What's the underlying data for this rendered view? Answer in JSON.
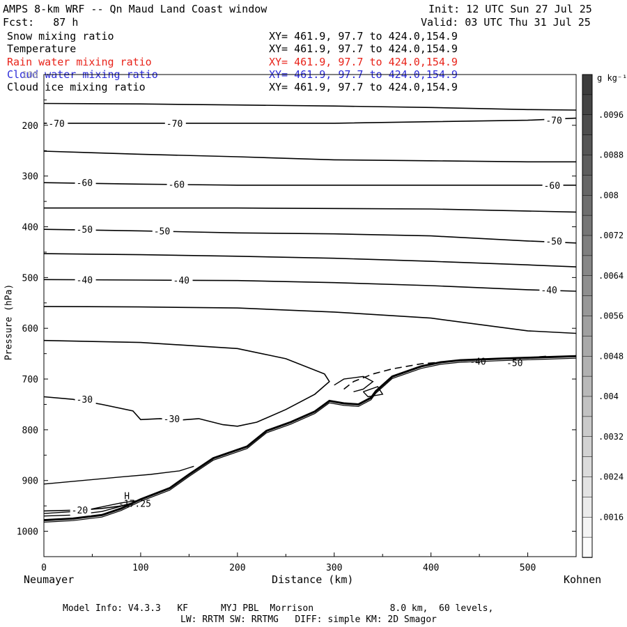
{
  "header": {
    "title": "AMPS 8-km WRF -- Qn Maud Land Coast window",
    "init": "Init: 12 UTC Sun 27 Jul 25",
    "fcst": "Fcst:   87 h",
    "valid": "Valid: 03 UTC Thu 31 Jul 25"
  },
  "fields": [
    {
      "name": "Snow mixing ratio",
      "xy": "XY= 461.9, 97.7 to 424.0,154.9",
      "color": "#000000"
    },
    {
      "name": "Temperature",
      "xy": "XY= 461.9, 97.7 to 424.0,154.9",
      "color": "#000000"
    },
    {
      "name": "Rain water mixing ratio",
      "xy": "XY= 461.9, 97.7 to 424.0,154.9",
      "color": "#e8231a"
    },
    {
      "name": "Cloud water mixing ratio",
      "xy": "XY= 461.9, 97.7 to 424.0,154.9",
      "color": "#2a2ad8"
    },
    {
      "name": "Cloud ice mixing ratio",
      "xy": "XY= 461.9, 97.7 to 424.0,154.9",
      "color": "#000000"
    }
  ],
  "footer": {
    "line1": "Model Info: V4.3.3   KF      MYJ PBL  Morrison              8.0 km,  60 levels,",
    "line2": "LW: RRTM SW: RRTMG   DIFF: simple KM: 2D Smagor"
  },
  "chart_data": {
    "type": "line",
    "title": "",
    "xlabel": "Distance (km)",
    "ylabel": "Pressure (hPa)",
    "xlim": [
      0,
      550
    ],
    "ylim": [
      1050,
      100
    ],
    "x_ticks": [
      0,
      100,
      200,
      300,
      400,
      500
    ],
    "y_ticks": [
      100,
      200,
      300,
      400,
      500,
      600,
      700,
      800,
      900,
      1000
    ],
    "left_endpoint": "Neumayer",
    "right_endpoint": "Kohnen",
    "colorbar": {
      "units": "g kg⁻¹",
      "ticks": [
        ".0096",
        ".0088",
        ".008",
        ".0072",
        ".0064",
        ".0056",
        ".0048",
        ".004",
        ".0032",
        ".0024",
        ".0016"
      ]
    },
    "isotherms": [
      {
        "label": "-70",
        "label_x": [
          6,
          128,
          520
        ],
        "points": [
          [
            0,
            196
          ],
          [
            100,
            196
          ],
          [
            200,
            196
          ],
          [
            300,
            196
          ],
          [
            400,
            193
          ],
          [
            500,
            190
          ],
          [
            550,
            186
          ]
        ]
      },
      {
        "label": "-60",
        "label_x": [
          35,
          130,
          518
        ],
        "points": [
          [
            0,
            313
          ],
          [
            100,
            316
          ],
          [
            200,
            318
          ],
          [
            300,
            318
          ],
          [
            400,
            318
          ],
          [
            500,
            318
          ],
          [
            550,
            318
          ]
        ]
      },
      {
        "label": "-50",
        "label_x": [
          35,
          115,
          520
        ],
        "points": [
          [
            0,
            405
          ],
          [
            100,
            408
          ],
          [
            200,
            412
          ],
          [
            300,
            414
          ],
          [
            400,
            418
          ],
          [
            500,
            428
          ],
          [
            550,
            432
          ]
        ]
      },
      {
        "label": "-40",
        "label_x": [
          35,
          135,
          515
        ],
        "points": [
          [
            0,
            504
          ],
          [
            100,
            505
          ],
          [
            200,
            506
          ],
          [
            300,
            510
          ],
          [
            400,
            516
          ],
          [
            500,
            524
          ],
          [
            550,
            527
          ]
        ]
      },
      {
        "label": "-30",
        "label_x": [
          35,
          125
        ],
        "points": [
          [
            0,
            624
          ],
          [
            100,
            628
          ],
          [
            200,
            640
          ],
          [
            250,
            660
          ],
          [
            290,
            690
          ],
          [
            295,
            705
          ],
          [
            280,
            730
          ],
          [
            250,
            760
          ],
          [
            220,
            785
          ],
          [
            200,
            793
          ],
          [
            185,
            790
          ],
          [
            160,
            778
          ],
          [
            140,
            781
          ],
          [
            120,
            778
          ],
          [
            100,
            780
          ],
          [
            92,
            763
          ],
          [
            60,
            750
          ],
          [
            30,
            740
          ],
          [
            0,
            735
          ]
        ]
      },
      {
        "label": "-20",
        "label_x": [
          30
        ],
        "points": [
          [
            0,
            960
          ],
          [
            40,
            958
          ],
          [
            60,
            955
          ],
          [
            80,
            950
          ],
          [
            90,
            945
          ]
        ]
      }
    ],
    "lines": [
      {
        "name": "line-90",
        "points": [
          [
            0,
            157
          ],
          [
            100,
            158
          ],
          [
            200,
            160
          ],
          [
            300,
            162
          ],
          [
            400,
            165
          ],
          [
            500,
            169
          ],
          [
            550,
            170
          ]
        ]
      },
      {
        "name": "line-80",
        "points": [
          [
            0,
            251
          ],
          [
            100,
            257
          ],
          [
            200,
            262
          ],
          [
            300,
            268
          ],
          [
            400,
            270
          ],
          [
            500,
            272
          ],
          [
            550,
            272
          ]
        ]
      },
      {
        "name": "line-55",
        "points": [
          [
            0,
            363
          ],
          [
            100,
            363
          ],
          [
            200,
            363
          ],
          [
            300,
            364
          ],
          [
            400,
            365
          ],
          [
            500,
            369
          ],
          [
            550,
            371
          ]
        ]
      },
      {
        "name": "line-45",
        "points": [
          [
            0,
            453
          ],
          [
            100,
            455
          ],
          [
            200,
            458
          ],
          [
            300,
            462
          ],
          [
            400,
            468
          ],
          [
            500,
            475
          ],
          [
            550,
            479
          ]
        ]
      },
      {
        "name": "line-35",
        "points": [
          [
            0,
            557
          ],
          [
            100,
            558
          ],
          [
            200,
            560
          ],
          [
            300,
            568
          ],
          [
            400,
            580
          ],
          [
            500,
            605
          ],
          [
            550,
            610
          ]
        ]
      }
    ],
    "terrain": [
      [
        0,
        978
      ],
      [
        30,
        975
      ],
      [
        60,
        968
      ],
      [
        80,
        955
      ],
      [
        100,
        937
      ],
      [
        130,
        915
      ],
      [
        150,
        888
      ],
      [
        175,
        856
      ],
      [
        210,
        833
      ],
      [
        230,
        802
      ],
      [
        255,
        785
      ],
      [
        280,
        764
      ],
      [
        295,
        743
      ],
      [
        310,
        748
      ],
      [
        325,
        750
      ],
      [
        338,
        737
      ],
      [
        343,
        724
      ],
      [
        360,
        695
      ],
      [
        390,
        675
      ],
      [
        410,
        667
      ],
      [
        430,
        663
      ],
      [
        470,
        660
      ],
      [
        500,
        658
      ],
      [
        550,
        655
      ]
    ],
    "annotations": [
      {
        "text": "H",
        "x": 83,
        "p": 930
      },
      {
        "text": "-17.25",
        "x": 77,
        "p": 945
      },
      {
        "text": "-40",
        "x": 440,
        "p": 665
      },
      {
        "text": "-50",
        "x": 478,
        "p": 668
      }
    ]
  }
}
